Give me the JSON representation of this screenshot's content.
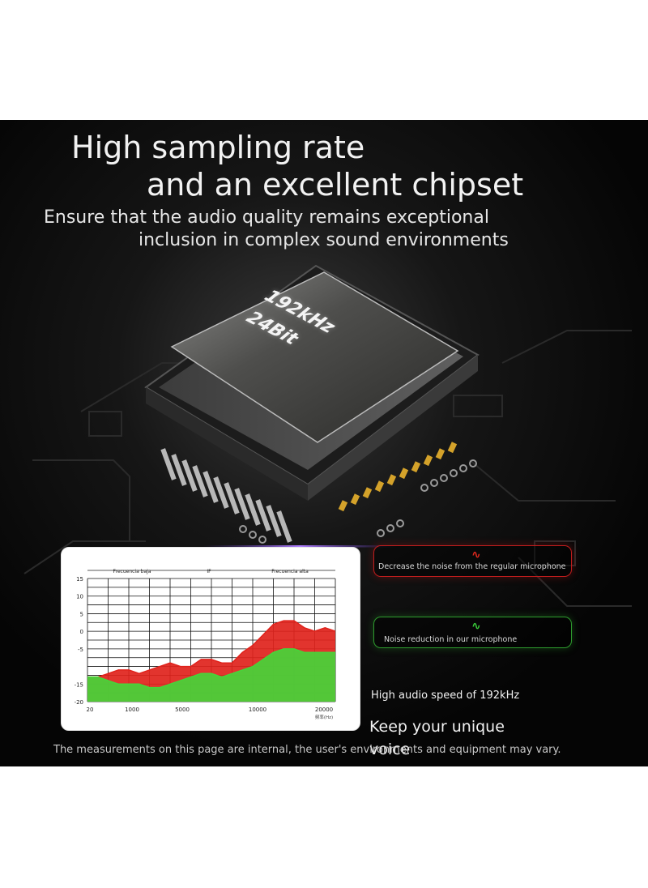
{
  "headline": {
    "line1": "High sampling rate",
    "line2": "and an excellent chipset"
  },
  "subheadline": {
    "line1": "Ensure that the audio quality remains exceptional",
    "line2": "inclusion in complex sound environments"
  },
  "chip": {
    "line1": "192kHz",
    "line2": "24Bit"
  },
  "chart_data": {
    "type": "area",
    "band_labels": [
      "Frecuencia baja",
      "IF",
      "Frecuencia alta"
    ],
    "y_ticks": [
      "15",
      "10",
      "5",
      "0",
      "-5",
      "-15",
      "-20"
    ],
    "x_ticks": [
      "20",
      "1000",
      "5000",
      "10000",
      "20000"
    ],
    "x_unit": "频率(Hz)",
    "ylim": [
      -20,
      15
    ],
    "series": [
      {
        "color": "#e0231c",
        "values": [
          -13,
          -13,
          -12,
          -11,
          -11,
          -12,
          -11,
          -10,
          -9,
          -10,
          -10,
          -8,
          -8,
          -9,
          -9,
          -6,
          -4,
          -1,
          2,
          3,
          3,
          1,
          0,
          1,
          0
        ]
      },
      {
        "color": "#47d43a",
        "values": [
          -13,
          -13,
          -14,
          -15,
          -15,
          -15,
          -16,
          -16,
          -15,
          -14,
          -13,
          -12,
          -12,
          -13,
          -12,
          -11,
          -10,
          -8,
          -6,
          -5,
          -5,
          -6,
          -6,
          -6,
          -6
        ]
      }
    ],
    "colors": {
      "red": "#e0231c",
      "green": "#47d43a"
    }
  },
  "badges": {
    "red": {
      "icon": "red-wave-icon",
      "glyph": "∿",
      "label": "Decrease the noise from the regular microphone",
      "color": "#c21d1d"
    },
    "green": {
      "icon": "green-wave-icon",
      "glyph": "∿",
      "label": "Noise reduction in our microphone",
      "color": "#2e9c2e"
    }
  },
  "speed_text": "High audio speed of 192kHz",
  "tagline": "Keep your unique voice",
  "disclaimer": "The measurements on this page are internal, the user's environments and equipment may vary."
}
